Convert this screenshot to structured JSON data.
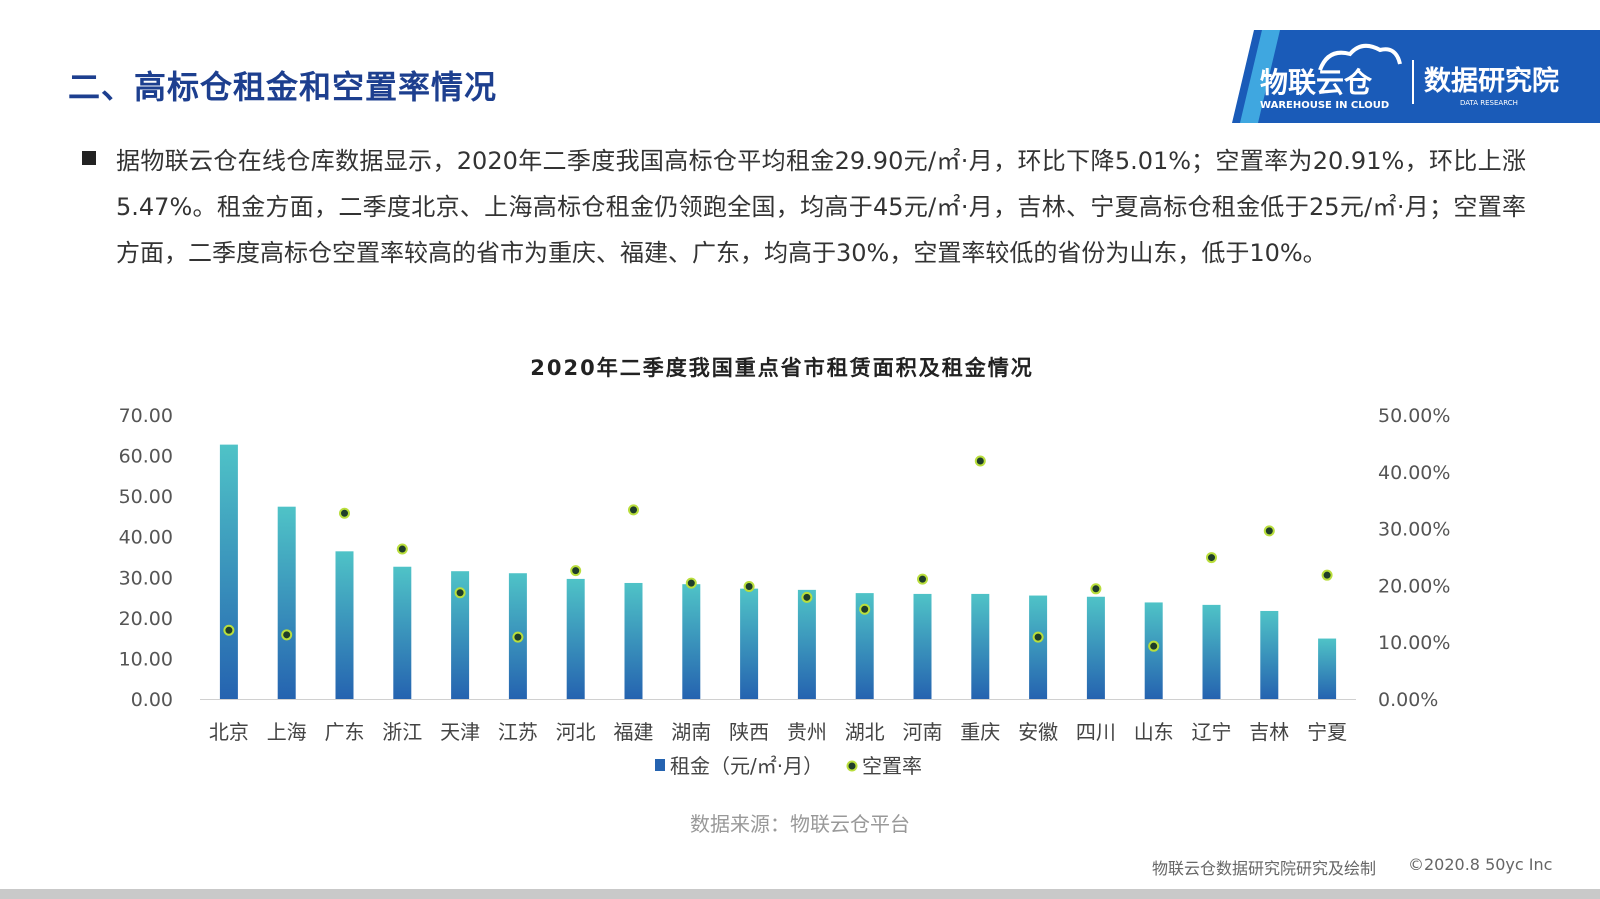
{
  "slide": {
    "title": "二、高标仓租金和空置率情况",
    "logo": {
      "brand_cn": "物联云仓",
      "brand_en": "WAREHOUSE IN CLOUD",
      "research_cn": "数据研究院",
      "research_en": "DATA RESEARCH"
    },
    "paragraph": "据物联云仓在线仓库数据显示，2020年二季度我国高标仓平均租金29.90元/㎡·月，环比下降5.01%；空置率为20.91%，环比上涨5.47%。租金方面，二季度北京、上海高标仓租金仍领跑全国，均高于45元/㎡·月，吉林、宁夏高标仓租金低于25元/㎡·月；空置率方面，二季度高标仓空置率较高的省市为重庆、福建、广东，均高于30%，空置率较低的省份为山东，低于10%。",
    "source": "数据来源：物联云仓平台",
    "footer_left": "物联云仓数据研究院研究及绘制",
    "footer_right": "©2020.8 50yc Inc"
  },
  "colors": {
    "title": "#1d3f8f",
    "bar_top": "#4fc3c7",
    "bar_bottom": "#2563b0",
    "dot_fill": "#1f3d2a",
    "dot_stroke": "#b9de3c"
  },
  "chart_data": {
    "type": "bar",
    "title": "2020年二季度我国重点省市租赁面积及租金情况",
    "categories": [
      "北京",
      "上海",
      "广东",
      "浙江",
      "天津",
      "江苏",
      "河北",
      "福建",
      "湖南",
      "陕西",
      "贵州",
      "湖北",
      "河南",
      "重庆",
      "安徽",
      "四川",
      "山东",
      "辽宁",
      "吉林",
      "宁夏"
    ],
    "series": [
      {
        "name": "租金（元/㎡·月）",
        "type": "bar",
        "axis": "left",
        "values": [
          62.7,
          47.4,
          36.4,
          32.6,
          31.5,
          31.0,
          29.6,
          28.6,
          28.3,
          27.2,
          26.9,
          26.1,
          25.9,
          25.9,
          25.5,
          25.2,
          23.8,
          23.2,
          21.7,
          14.9
        ]
      },
      {
        "name": "空置率",
        "type": "scatter",
        "axis": "right",
        "values": [
          12.1,
          11.3,
          32.7,
          26.4,
          18.7,
          10.9,
          22.6,
          33.3,
          20.4,
          19.8,
          17.9,
          15.8,
          21.1,
          41.9,
          10.9,
          19.4,
          9.3,
          24.9,
          29.6,
          21.8
        ]
      }
    ],
    "y_left": {
      "ylim": [
        0,
        70
      ],
      "ticks": [
        "0.00",
        "10.00",
        "20.00",
        "30.00",
        "40.00",
        "50.00",
        "60.00",
        "70.00"
      ]
    },
    "y_right": {
      "ylim": [
        0,
        50
      ],
      "ticks": [
        "0.00%",
        "10.00%",
        "20.00%",
        "30.00%",
        "40.00%",
        "50.00%"
      ]
    },
    "grid": false,
    "legend_position": "bottom"
  }
}
